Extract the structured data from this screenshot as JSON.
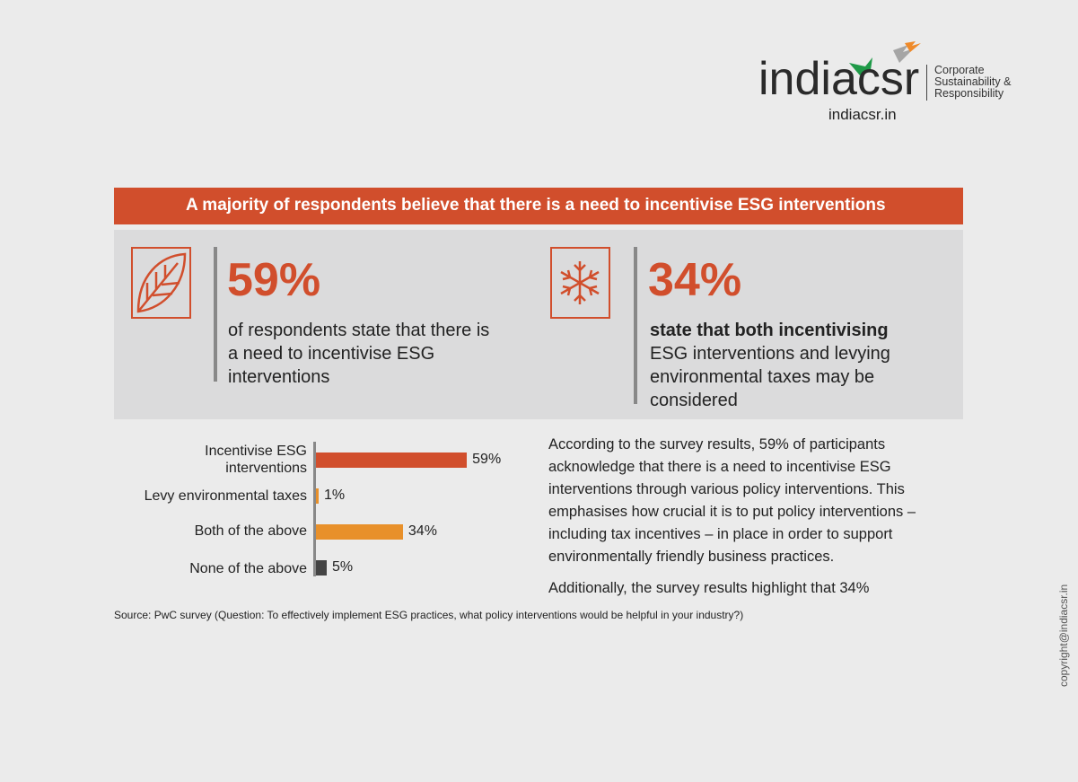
{
  "logo": {
    "wordmark": "indiacsr",
    "tagline": [
      "Corporate",
      "Sustainability &",
      "Responsibility"
    ],
    "url": "indiacsr.in"
  },
  "banner": "A majority of respondents believe that there is a need to incentivise ESG interventions",
  "stats": [
    {
      "icon": "leaf-icon",
      "value": "59%",
      "text": "of respondents state that there is a need to incentivise ESG interventions"
    },
    {
      "icon": "snowflake-icon",
      "value": "34%",
      "bold": "state that both incentivising",
      "text": "ESG interventions and levying environmental taxes may be considered"
    }
  ],
  "chart_data": {
    "type": "bar",
    "orientation": "horizontal",
    "categories": [
      "Incentivise ESG interventions",
      "Levy environmental taxes",
      "Both of the above",
      "None of the above"
    ],
    "values": [
      59,
      1,
      34,
      5
    ],
    "labels": [
      "59%",
      "1%",
      "34%",
      "5%"
    ],
    "colors": [
      "#d14e2c",
      "#e8902a",
      "#e8902a",
      "#444444"
    ]
  },
  "paragraph": [
    "According to the survey results, 59% of participants acknowledge that there is a need to incentivise ESG interventions through various policy interventions. This emphasises how crucial it is to put policy interventions – including tax incentives – in place in order to support environmentally friendly business practices.",
    "Additionally, the survey results highlight that 34%"
  ],
  "source": "Source: PwC survey (Question: To effectively implement ESG practices, what  policy interventions would be helpful in your industry?)",
  "copyright": "copyright@indiacsr.in"
}
